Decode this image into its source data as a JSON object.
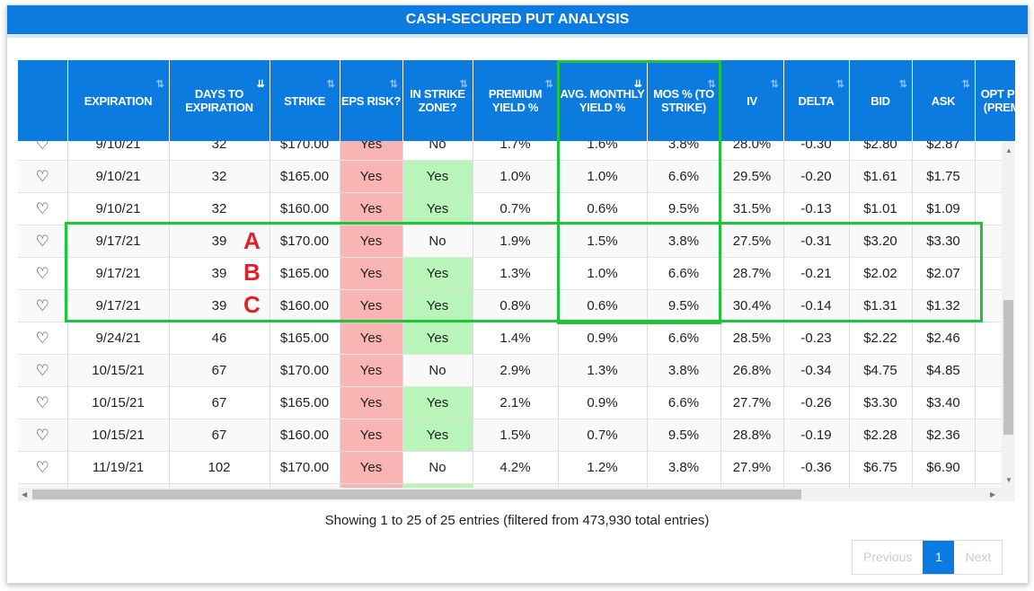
{
  "title": "CASH-SECURED PUT ANALYSIS",
  "columns": [
    {
      "label": "",
      "sort": ""
    },
    {
      "label": "EXPIRATION",
      "sort": "both"
    },
    {
      "label": "DAYS TO EXPIRATION",
      "sort": "asc"
    },
    {
      "label": "STRIKE",
      "sort": "both"
    },
    {
      "label": "EPS RISK?",
      "sort": "both"
    },
    {
      "label": "IN STRIKE ZONE?",
      "sort": "both"
    },
    {
      "label": "PREMIUM YIELD %",
      "sort": "both"
    },
    {
      "label": "AVG. MONTHLY YIELD %",
      "sort": "desc"
    },
    {
      "label": "MOS % (TO STRIKE)",
      "sort": "both"
    },
    {
      "label": "IV",
      "sort": "both"
    },
    {
      "label": "DELTA",
      "sort": "both"
    },
    {
      "label": "BID",
      "sort": "both"
    },
    {
      "label": "ASK",
      "sort": "both"
    },
    {
      "label": "OPT PR (PREM",
      "sort": ""
    }
  ],
  "rows": [
    [
      "9/10/21",
      "32",
      "$170.00",
      "Yes",
      "No",
      "1.7%",
      "1.6%",
      "3.8%",
      "28.0%",
      "-0.30",
      "$2.80",
      "$2.87"
    ],
    [
      "9/10/21",
      "32",
      "$165.00",
      "Yes",
      "Yes",
      "1.0%",
      "1.0%",
      "6.6%",
      "29.5%",
      "-0.20",
      "$1.61",
      "$1.75"
    ],
    [
      "9/10/21",
      "32",
      "$160.00",
      "Yes",
      "Yes",
      "0.7%",
      "0.6%",
      "9.5%",
      "31.5%",
      "-0.13",
      "$1.01",
      "$1.09"
    ],
    [
      "9/17/21",
      "39",
      "$170.00",
      "Yes",
      "No",
      "1.9%",
      "1.5%",
      "3.8%",
      "27.5%",
      "-0.31",
      "$3.20",
      "$3.30"
    ],
    [
      "9/17/21",
      "39",
      "$165.00",
      "Yes",
      "Yes",
      "1.3%",
      "1.0%",
      "6.6%",
      "28.7%",
      "-0.21",
      "$2.02",
      "$2.07"
    ],
    [
      "9/17/21",
      "39",
      "$160.00",
      "Yes",
      "Yes",
      "0.8%",
      "0.6%",
      "9.5%",
      "30.4%",
      "-0.14",
      "$1.31",
      "$1.32"
    ],
    [
      "9/24/21",
      "46",
      "$165.00",
      "Yes",
      "Yes",
      "1.4%",
      "0.9%",
      "6.6%",
      "28.5%",
      "-0.23",
      "$2.22",
      "$2.46"
    ],
    [
      "10/15/21",
      "67",
      "$170.00",
      "Yes",
      "No",
      "2.9%",
      "1.3%",
      "3.8%",
      "26.8%",
      "-0.34",
      "$4.75",
      "$4.85"
    ],
    [
      "10/15/21",
      "67",
      "$165.00",
      "Yes",
      "Yes",
      "2.1%",
      "0.9%",
      "6.6%",
      "27.7%",
      "-0.26",
      "$3.30",
      "$3.40"
    ],
    [
      "10/15/21",
      "67",
      "$160.00",
      "Yes",
      "Yes",
      "1.5%",
      "0.7%",
      "9.5%",
      "28.8%",
      "-0.19",
      "$2.28",
      "$2.36"
    ],
    [
      "11/19/21",
      "102",
      "$170.00",
      "Yes",
      "No",
      "4.2%",
      "1.2%",
      "3.8%",
      "27.9%",
      "-0.36",
      "$6.75",
      "$6.90"
    ],
    [
      "",
      "",
      "",
      "Yes",
      "Yes",
      "",
      "",
      "",
      "",
      "",
      "",
      ""
    ]
  ],
  "annotations": {
    "a": "A",
    "b": "B",
    "c": "C"
  },
  "info": "Showing 1 to 25 of 25 entries (filtered from 473,930 total entries)",
  "pager": {
    "previous": "Previous",
    "current": "1",
    "next": "Next"
  },
  "colors": {
    "header": "#0b7be0",
    "highlight": "#1ec43c",
    "risk": "#f9b4b4",
    "zone": "#b9f5b9"
  }
}
